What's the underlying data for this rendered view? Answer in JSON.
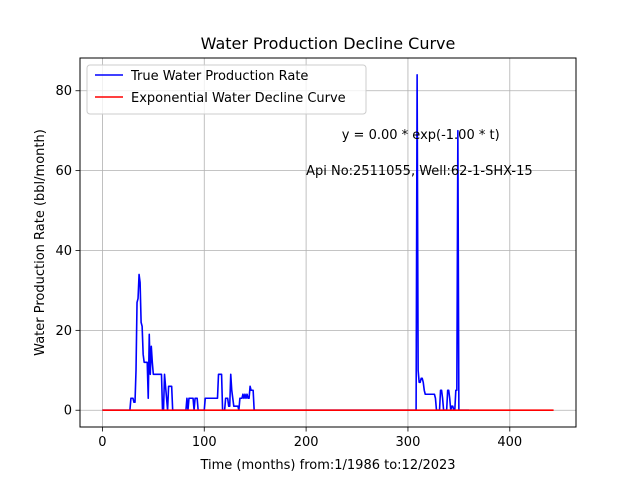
{
  "chart_data": {
    "type": "line",
    "title": "Water Production Decline Curve",
    "xlabel": "Time (months) from:1/1986 to:12/2023",
    "ylabel": "Water Production Rate (bbl/month)",
    "xlim": [
      -22,
      465
    ],
    "ylim": [
      -4.2,
      88.2
    ],
    "x_ticks": [
      0,
      100,
      200,
      300,
      400
    ],
    "x_tick_labels": [
      "0",
      "100",
      "200",
      "300",
      "400"
    ],
    "y_ticks": [
      0,
      20,
      40,
      60,
      80
    ],
    "y_tick_labels": [
      "0",
      "20",
      "40",
      "60",
      "80"
    ],
    "grid": true,
    "legend_position": "upper-left",
    "annotations": [
      {
        "text": "y = 0.00 * exp(-1.00 * t)",
        "x": 235,
        "y": 69
      },
      {
        "text": "Api No:2511055, Well:62-1-SHX-15",
        "x": 200,
        "y": 60
      }
    ],
    "series": [
      {
        "name": "True Water Production Rate",
        "color": "#0000ff",
        "x": [
          0,
          25,
          26,
          27,
          28,
          29,
          30,
          31,
          32,
          33,
          34,
          35,
          36,
          37,
          38,
          39,
          40,
          41,
          42,
          43,
          44,
          45,
          46,
          47,
          48,
          49,
          50,
          51,
          52,
          53,
          54,
          55,
          56,
          57,
          58,
          59,
          60,
          61,
          62,
          63,
          64,
          65,
          66,
          67,
          68,
          69,
          70,
          71,
          72,
          73,
          74,
          75,
          76,
          77,
          78,
          79,
          80,
          81,
          82,
          83,
          84,
          85,
          86,
          87,
          88,
          89,
          90,
          91,
          92,
          93,
          94,
          95,
          96,
          97,
          98,
          99,
          100,
          101,
          102,
          103,
          104,
          105,
          106,
          107,
          108,
          109,
          110,
          111,
          112,
          113,
          114,
          115,
          116,
          117,
          118,
          119,
          120,
          121,
          122,
          123,
          124,
          125,
          126,
          127,
          128,
          129,
          130,
          131,
          132,
          133,
          134,
          135,
          136,
          137,
          138,
          139,
          140,
          141,
          142,
          143,
          144,
          145,
          146,
          147,
          148,
          149,
          305,
          306,
          307,
          308,
          309,
          310,
          311,
          312,
          313,
          314,
          315,
          316,
          317,
          318,
          319,
          320,
          321,
          322,
          323,
          324,
          325,
          326,
          327,
          328,
          329,
          330,
          331,
          332,
          333,
          334,
          335,
          336,
          337,
          338,
          339,
          340,
          341,
          342,
          343,
          344,
          345,
          346,
          347,
          348,
          349,
          350,
          351,
          352,
          353,
          354,
          355,
          356,
          357,
          358,
          359,
          360
        ],
        "y": [
          0,
          0,
          0,
          0,
          3,
          3,
          3,
          2,
          2,
          10,
          27,
          28,
          34,
          32,
          22,
          21,
          14,
          12,
          12,
          12,
          12,
          3,
          19,
          9,
          16,
          12,
          9,
          9,
          9,
          9,
          9,
          9,
          9,
          9,
          9,
          0,
          0,
          9,
          6,
          3,
          0,
          6,
          6,
          6,
          6,
          0,
          0,
          0,
          0,
          0,
          0,
          0,
          0,
          0,
          0,
          0,
          0,
          0,
          0,
          3,
          0,
          3,
          3,
          3,
          3,
          3,
          0,
          3,
          3,
          3,
          0,
          0,
          0,
          0,
          0,
          0,
          0,
          3,
          3,
          3,
          3,
          3,
          3,
          3,
          3,
          3,
          3,
          3,
          3,
          3,
          9,
          9,
          9,
          9,
          0,
          0,
          0,
          3,
          3,
          3,
          1,
          1,
          9,
          5,
          3,
          1,
          1,
          1,
          1,
          1,
          0,
          3,
          3,
          3,
          4,
          3,
          4,
          3,
          4,
          3,
          3,
          6,
          5,
          5,
          5,
          0,
          0,
          0,
          0,
          0,
          84,
          10,
          7,
          7,
          8,
          8,
          7,
          5,
          4,
          4,
          4,
          4,
          4,
          4,
          4,
          4,
          4,
          4,
          3,
          0,
          0,
          0,
          0,
          5,
          5,
          3,
          0,
          0,
          0,
          0,
          5,
          5,
          3,
          0,
          1,
          1,
          0,
          0,
          5,
          5,
          70,
          0,
          0,
          0,
          0,
          0,
          0,
          0,
          0,
          0,
          0,
          0
        ]
      },
      {
        "name": "Exponential Water Decline Curve",
        "color": "#ff0000",
        "x": [
          0,
          443
        ],
        "y": [
          0,
          0
        ]
      }
    ]
  }
}
